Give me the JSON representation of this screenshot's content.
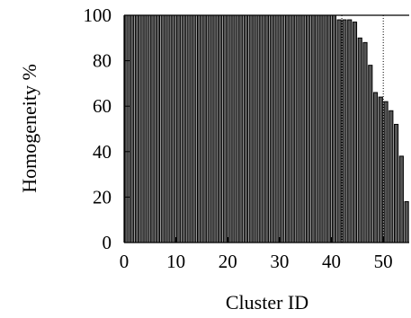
{
  "chart_data": {
    "type": "bar",
    "title": "",
    "xlabel": "Cluster ID",
    "ylabel": "Homogeneity %",
    "xlim": [
      0,
      55
    ],
    "ylim": [
      0,
      100
    ],
    "xticks": [
      "0",
      "10",
      "20",
      "30",
      "40",
      "50"
    ],
    "yticks": [
      "0",
      "20",
      "40",
      "60",
      "80",
      "100"
    ],
    "grid": "vertical dotted gridlines at 42 and 50",
    "bar_fill": "#555555",
    "bar_stroke": "#000000",
    "series": [
      {
        "x": [
          0,
          1,
          2,
          3,
          4,
          5,
          6,
          7,
          8,
          9,
          10,
          11,
          12,
          13,
          14,
          15,
          16,
          17,
          18,
          19,
          20,
          21,
          22,
          23,
          24,
          25,
          26,
          27,
          28,
          29,
          30,
          31,
          32,
          33,
          34,
          35,
          36,
          37,
          38,
          39,
          40,
          41,
          42,
          43,
          44,
          45,
          46,
          47,
          48,
          49,
          50,
          51,
          52,
          53,
          54
        ],
        "values": [
          100,
          100,
          100,
          100,
          100,
          100,
          100,
          100,
          100,
          100,
          100,
          100,
          100,
          100,
          100,
          100,
          100,
          100,
          100,
          100,
          100,
          100,
          100,
          100,
          100,
          100,
          100,
          100,
          100,
          100,
          100,
          100,
          100,
          100,
          100,
          100,
          100,
          100,
          100,
          100,
          100,
          98,
          98,
          98,
          97,
          90,
          88,
          78,
          66,
          64,
          62,
          58,
          52,
          38,
          18
        ]
      }
    ]
  }
}
